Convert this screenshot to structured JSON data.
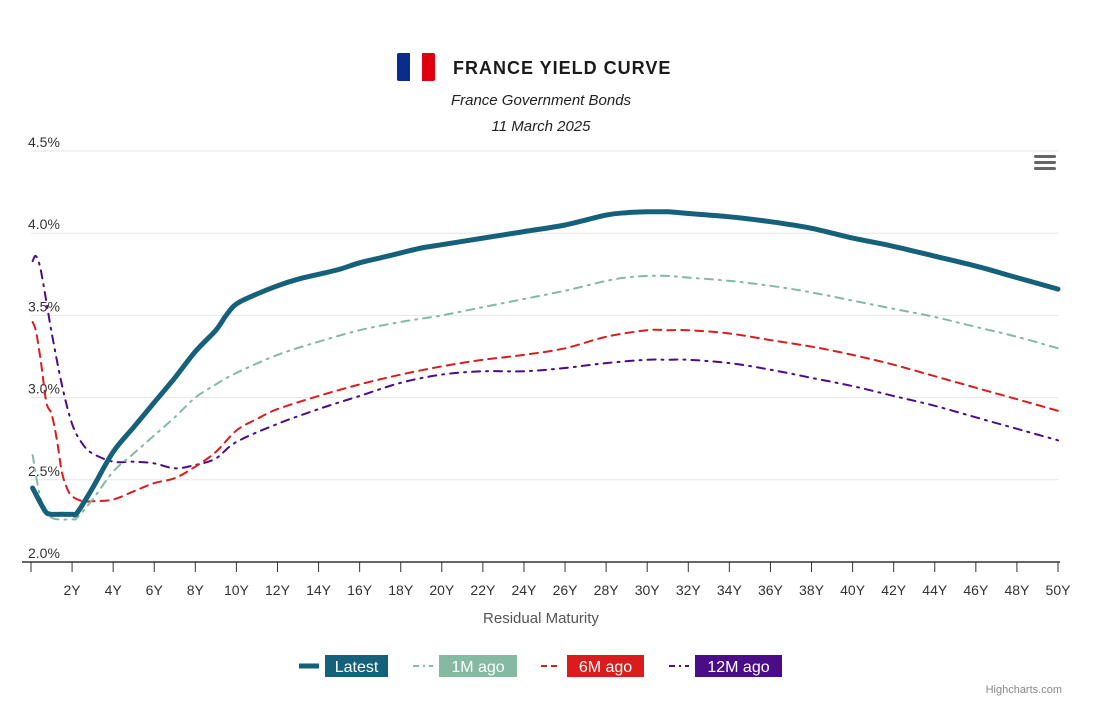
{
  "header": {
    "title": "FRANCE YIELD CURVE",
    "subtitle": "France Government Bonds",
    "date": "11 March 2025",
    "flag_colors": [
      "#0a2c8a",
      "#ffffff",
      "#e1000f"
    ]
  },
  "menu_icon": "hamburger-menu-icon",
  "credits": "Highcharts.com",
  "chart_data": {
    "type": "line",
    "title": "FRANCE YIELD CURVE",
    "subtitle": "France Government Bonds",
    "xlabel": "Residual Maturity",
    "ylabel": "",
    "xlim": [
      0,
      50
    ],
    "ylim": [
      2.0,
      4.5
    ],
    "x_ticks": [
      "2Y",
      "4Y",
      "6Y",
      "8Y",
      "10Y",
      "12Y",
      "14Y",
      "16Y",
      "18Y",
      "20Y",
      "22Y",
      "24Y",
      "26Y",
      "28Y",
      "30Y",
      "32Y",
      "34Y",
      "36Y",
      "38Y",
      "40Y",
      "42Y",
      "44Y",
      "46Y",
      "48Y",
      "50Y"
    ],
    "y_ticks": [
      "2.0%",
      "2.5%",
      "3.0%",
      "3.5%",
      "4.0%",
      "4.5%"
    ],
    "grid": true,
    "legend_position": "bottom-center",
    "series": [
      {
        "name": "Latest",
        "color": "#15607a",
        "dash": "solid",
        "points": [
          [
            0.08,
            2.45
          ],
          [
            0.5,
            2.35
          ],
          [
            0.75,
            2.3
          ],
          [
            1,
            2.29
          ],
          [
            1.5,
            2.29
          ],
          [
            2,
            2.29
          ],
          [
            2.25,
            2.3
          ],
          [
            3,
            2.45
          ],
          [
            4,
            2.67
          ],
          [
            5,
            2.82
          ],
          [
            6,
            2.97
          ],
          [
            7,
            3.12
          ],
          [
            8,
            3.28
          ],
          [
            9,
            3.41
          ],
          [
            9.5,
            3.5
          ],
          [
            10,
            3.57
          ],
          [
            11,
            3.63
          ],
          [
            12,
            3.68
          ],
          [
            13,
            3.72
          ],
          [
            14,
            3.75
          ],
          [
            15,
            3.78
          ],
          [
            16,
            3.82
          ],
          [
            17,
            3.85
          ],
          [
            18,
            3.88
          ],
          [
            19,
            3.91
          ],
          [
            20,
            3.93
          ],
          [
            22,
            3.97
          ],
          [
            24,
            4.01
          ],
          [
            26,
            4.05
          ],
          [
            28,
            4.11
          ],
          [
            29,
            4.125
          ],
          [
            30,
            4.13
          ],
          [
            31,
            4.13
          ],
          [
            32,
            4.12
          ],
          [
            34,
            4.1
          ],
          [
            36,
            4.07
          ],
          [
            38,
            4.03
          ],
          [
            40,
            3.97
          ],
          [
            42,
            3.92
          ],
          [
            44,
            3.86
          ],
          [
            46,
            3.8
          ],
          [
            48,
            3.73
          ],
          [
            50,
            3.66
          ]
        ]
      },
      {
        "name": "1M ago",
        "color": "#84b9a2",
        "dash": "dashdot",
        "points": [
          [
            0.08,
            2.65
          ],
          [
            0.5,
            2.37
          ],
          [
            1,
            2.27
          ],
          [
            2,
            2.26
          ],
          [
            2.25,
            2.27
          ],
          [
            3,
            2.38
          ],
          [
            4,
            2.55
          ],
          [
            5,
            2.66
          ],
          [
            6,
            2.77
          ],
          [
            7,
            2.88
          ],
          [
            8,
            3.0
          ],
          [
            9,
            3.08
          ],
          [
            10,
            3.15
          ],
          [
            12,
            3.26
          ],
          [
            14,
            3.34
          ],
          [
            16,
            3.41
          ],
          [
            18,
            3.46
          ],
          [
            20,
            3.5
          ],
          [
            22,
            3.55
          ],
          [
            24,
            3.6
          ],
          [
            26,
            3.65
          ],
          [
            28,
            3.71
          ],
          [
            29,
            3.73
          ],
          [
            30,
            3.74
          ],
          [
            31,
            3.74
          ],
          [
            32,
            3.73
          ],
          [
            34,
            3.71
          ],
          [
            36,
            3.68
          ],
          [
            38,
            3.64
          ],
          [
            40,
            3.59
          ],
          [
            42,
            3.54
          ],
          [
            44,
            3.49
          ],
          [
            46,
            3.43
          ],
          [
            48,
            3.37
          ],
          [
            50,
            3.3
          ]
        ]
      },
      {
        "name": "6M ago",
        "color": "#dc1c1c",
        "dash": "dash",
        "points": [
          [
            0.08,
            3.46
          ],
          [
            0.25,
            3.4
          ],
          [
            0.5,
            3.2
          ],
          [
            0.75,
            2.97
          ],
          [
            1,
            2.9
          ],
          [
            1.25,
            2.75
          ],
          [
            1.5,
            2.55
          ],
          [
            1.75,
            2.45
          ],
          [
            2,
            2.4
          ],
          [
            2.5,
            2.37
          ],
          [
            3,
            2.37
          ],
          [
            4,
            2.38
          ],
          [
            5,
            2.43
          ],
          [
            6,
            2.48
          ],
          [
            7,
            2.51
          ],
          [
            8,
            2.58
          ],
          [
            9,
            2.67
          ],
          [
            10,
            2.8
          ],
          [
            11,
            2.87
          ],
          [
            12,
            2.93
          ],
          [
            14,
            3.01
          ],
          [
            16,
            3.08
          ],
          [
            18,
            3.14
          ],
          [
            20,
            3.19
          ],
          [
            22,
            3.23
          ],
          [
            24,
            3.26
          ],
          [
            26,
            3.3
          ],
          [
            28,
            3.37
          ],
          [
            30,
            3.41
          ],
          [
            31,
            3.41
          ],
          [
            32,
            3.41
          ],
          [
            34,
            3.39
          ],
          [
            36,
            3.35
          ],
          [
            38,
            3.31
          ],
          [
            40,
            3.26
          ],
          [
            42,
            3.2
          ],
          [
            44,
            3.13
          ],
          [
            46,
            3.06
          ],
          [
            48,
            2.99
          ],
          [
            50,
            2.92
          ]
        ]
      },
      {
        "name": "12M ago",
        "color": "#4b0c8a",
        "dash": "dashdot",
        "points": [
          [
            0.08,
            3.83
          ],
          [
            0.25,
            3.86
          ],
          [
            0.5,
            3.76
          ],
          [
            1,
            3.4
          ],
          [
            1.5,
            3.08
          ],
          [
            2,
            2.84
          ],
          [
            2.5,
            2.72
          ],
          [
            3,
            2.66
          ],
          [
            4,
            2.61
          ],
          [
            5,
            2.61
          ],
          [
            6,
            2.6
          ],
          [
            7,
            2.57
          ],
          [
            8,
            2.59
          ],
          [
            9,
            2.63
          ],
          [
            10,
            2.73
          ],
          [
            12,
            2.84
          ],
          [
            14,
            2.93
          ],
          [
            16,
            3.01
          ],
          [
            18,
            3.09
          ],
          [
            20,
            3.14
          ],
          [
            22,
            3.16
          ],
          [
            24,
            3.16
          ],
          [
            26,
            3.18
          ],
          [
            28,
            3.21
          ],
          [
            30,
            3.23
          ],
          [
            31,
            3.23
          ],
          [
            32,
            3.23
          ],
          [
            34,
            3.21
          ],
          [
            36,
            3.17
          ],
          [
            38,
            3.12
          ],
          [
            40,
            3.07
          ],
          [
            42,
            3.01
          ],
          [
            44,
            2.95
          ],
          [
            46,
            2.88
          ],
          [
            48,
            2.81
          ],
          [
            50,
            2.74
          ]
        ]
      }
    ]
  }
}
